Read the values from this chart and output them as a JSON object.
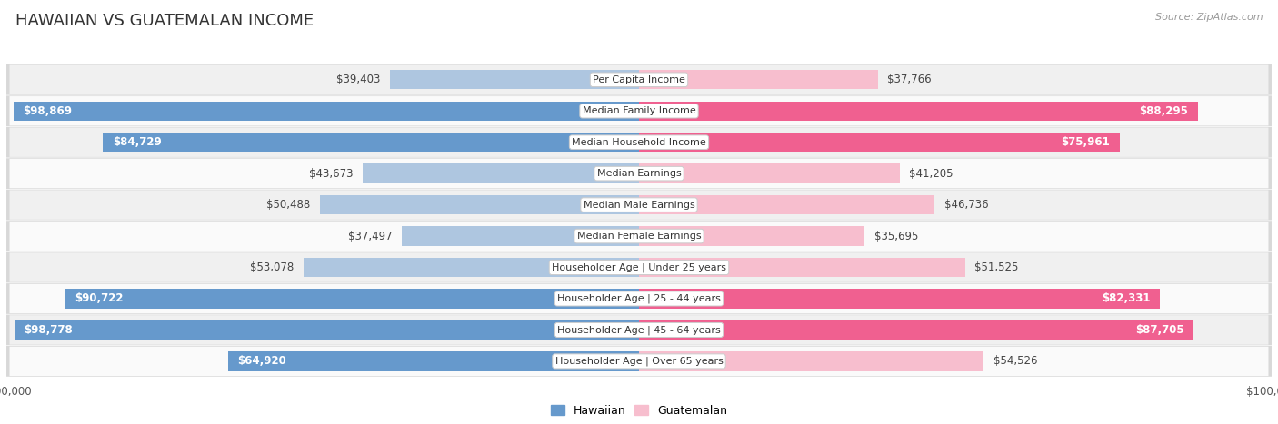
{
  "title": "HAWAIIAN VS GUATEMALAN INCOME",
  "source": "Source: ZipAtlas.com",
  "categories": [
    "Per Capita Income",
    "Median Family Income",
    "Median Household Income",
    "Median Earnings",
    "Median Male Earnings",
    "Median Female Earnings",
    "Householder Age | Under 25 years",
    "Householder Age | 25 - 44 years",
    "Householder Age | 45 - 64 years",
    "Householder Age | Over 65 years"
  ],
  "hawaiian_values": [
    39403,
    98869,
    84729,
    43673,
    50488,
    37497,
    53078,
    90722,
    98778,
    64920
  ],
  "guatemalan_values": [
    37766,
    88295,
    75961,
    41205,
    46736,
    35695,
    51525,
    82331,
    87705,
    54526
  ],
  "hawaiian_labels": [
    "$39,403",
    "$98,869",
    "$84,729",
    "$43,673",
    "$50,488",
    "$37,497",
    "$53,078",
    "$90,722",
    "$98,778",
    "$64,920"
  ],
  "guatemalan_labels": [
    "$37,766",
    "$88,295",
    "$75,961",
    "$41,205",
    "$46,736",
    "$35,695",
    "$51,525",
    "$82,331",
    "$87,705",
    "$54,526"
  ],
  "max_value": 100000,
  "hawaiian_color_light": "#aec6e0",
  "hawaiian_color_dark": "#6699cc",
  "guatemalan_color_light": "#f7bece",
  "guatemalan_color_dark": "#f06090",
  "inside_label_threshold": 60000,
  "bar_height": 0.62,
  "row_bg_odd": "#f0f0f0",
  "row_bg_even": "#fafafa",
  "row_border": "#d8d8d8",
  "title_fontsize": 13,
  "label_fontsize": 8.5,
  "cat_fontsize": 8,
  "source_fontsize": 8,
  "background_color": "#ffffff",
  "legend_label_hawaiian": "Hawaiian",
  "legend_label_guatemalan": "Guatemalan"
}
